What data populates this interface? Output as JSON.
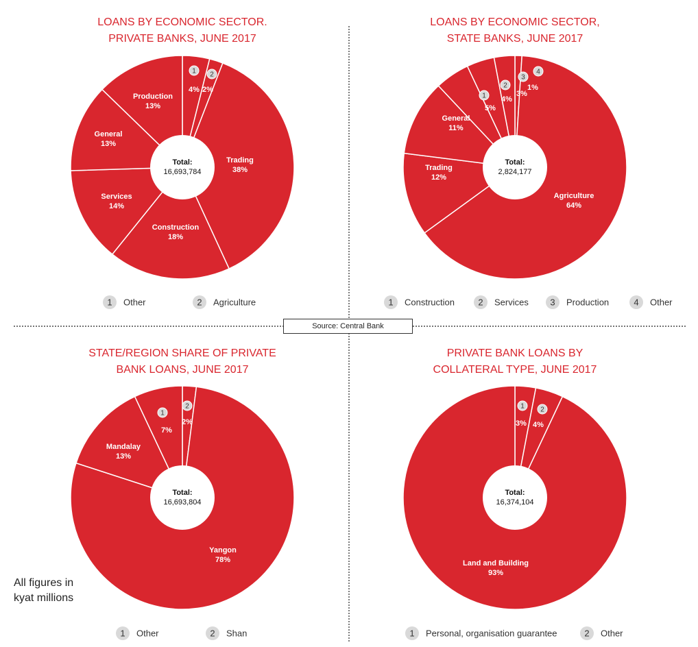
{
  "source": "Source: Central Bank",
  "note": [
    "All figures in",
    "kyat millions"
  ],
  "colors": {
    "slice": "#d9262e",
    "badge": "#d9d9d9",
    "title": "#d9262e"
  },
  "chart_data": [
    {
      "type": "pie",
      "title": [
        "LOANS BY ECONOMIC SECTOR.",
        "PRIVATE BANKS, JUNE 2017"
      ],
      "total_label": "Total:",
      "total_value": "16,693,784",
      "slices": [
        {
          "name": "Other",
          "value": 4,
          "label": "4%",
          "badge": "1"
        },
        {
          "name": "Agriculture",
          "value": 2,
          "label": "2%",
          "badge": "2"
        },
        {
          "name": "Trading",
          "value": 38,
          "label": "38%"
        },
        {
          "name": "Construction",
          "value": 18,
          "label": "18%"
        },
        {
          "name": "Services",
          "value": 14,
          "label": "14%"
        },
        {
          "name": "General",
          "value": 13,
          "label": "13%"
        },
        {
          "name": "Production",
          "value": 13,
          "label": "13%"
        }
      ],
      "legend": [
        {
          "num": "1",
          "text": "Other"
        },
        {
          "num": "2",
          "text": "Agriculture"
        }
      ]
    },
    {
      "type": "pie",
      "title": [
        "LOANS BY ECONOMIC SECTOR,",
        "STATE BANKS, JUNE 2017"
      ],
      "total_label": "Total:",
      "total_value": "2,824,177",
      "slices": [
        {
          "name": "Other",
          "value": 1,
          "label": "1%",
          "badge": "4"
        },
        {
          "name": "Agriculture",
          "value": 64,
          "label": "64%"
        },
        {
          "name": "Trading",
          "value": 12,
          "label": "12%"
        },
        {
          "name": "General",
          "value": 11,
          "label": "11%"
        },
        {
          "name": "Construction",
          "value": 5,
          "label": "5%",
          "badge": "1"
        },
        {
          "name": "Services",
          "value": 4,
          "label": "4%",
          "badge": "2"
        },
        {
          "name": "Production",
          "value": 3,
          "label": "3%",
          "badge": "3"
        }
      ],
      "legend": [
        {
          "num": "1",
          "text": "Construction"
        },
        {
          "num": "2",
          "text": "Services"
        },
        {
          "num": "3",
          "text": "Production"
        },
        {
          "num": "4",
          "text": "Other"
        }
      ]
    },
    {
      "type": "pie",
      "title": [
        "STATE/REGION SHARE OF PRIVATE",
        "BANK LOANS, JUNE 2017"
      ],
      "total_label": "Total:",
      "total_value": "16,693,804",
      "slices": [
        {
          "name": "Shan",
          "value": 2,
          "label": "2%",
          "badge": "2"
        },
        {
          "name": "Yangon",
          "value": 78,
          "label": "78%"
        },
        {
          "name": "Mandalay",
          "value": 13,
          "label": "13%"
        },
        {
          "name": "Other",
          "value": 7,
          "label": "7%",
          "badge": "1"
        }
      ],
      "legend": [
        {
          "num": "1",
          "text": "Other"
        },
        {
          "num": "2",
          "text": "Shan"
        }
      ]
    },
    {
      "type": "pie",
      "title": [
        "PRIVATE BANK LOANS BY",
        "COLLATERAL TYPE, JUNE 2017"
      ],
      "total_label": "Total:",
      "total_value": "16,374,104",
      "slices": [
        {
          "name": "Personal, organisation guarantee",
          "value": 3,
          "label": "3%",
          "badge": "1"
        },
        {
          "name": "Other",
          "value": 4,
          "label": "4%",
          "badge": "2"
        },
        {
          "name": "Land and Building",
          "value": 93,
          "label": "93%"
        }
      ],
      "legend": [
        {
          "num": "1",
          "text": "Personal, organisation guarantee"
        },
        {
          "num": "2",
          "text": "Other"
        }
      ]
    }
  ]
}
